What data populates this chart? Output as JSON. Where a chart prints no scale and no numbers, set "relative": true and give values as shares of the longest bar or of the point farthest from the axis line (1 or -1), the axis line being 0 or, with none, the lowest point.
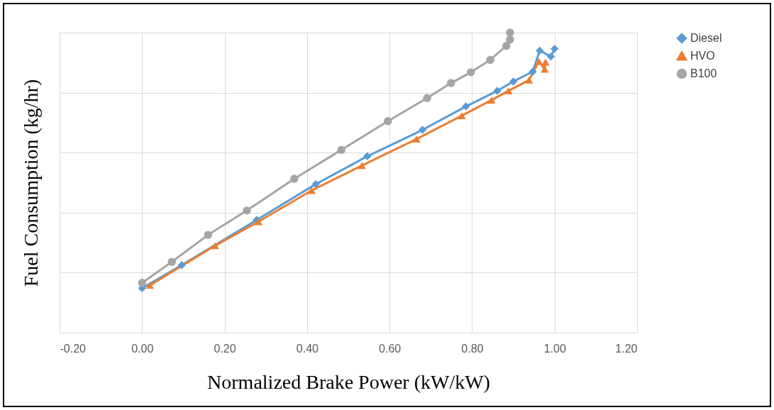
{
  "chart_data": {
    "type": "line",
    "xlabel": "Normalized Brake Power (kW/kW)",
    "ylabel": "Fuel Consumption (kg/hr)",
    "relative": true,
    "grid": true,
    "legend": "right",
    "xlim": [
      -0.2,
      1.2
    ],
    "xticks": [
      {
        "value": -0.2,
        "label": "-0.20"
      },
      {
        "value": 0,
        "label": "0.00"
      },
      {
        "value": 0.2,
        "label": "0.20"
      },
      {
        "value": 0.4,
        "label": "0.40"
      },
      {
        "value": 0.6,
        "label": "0.60"
      },
      {
        "value": 0.8,
        "label": "0.80"
      },
      {
        "value": 1,
        "label": "1.00"
      },
      {
        "value": 1.2,
        "label": "1.20"
      }
    ],
    "series": [
      {
        "name": "Diesel",
        "color": "#5b9bd5",
        "marker": "diamond",
        "x": [
          0,
          0.096,
          0.278,
          0.421,
          0.546,
          0.68,
          0.785,
          0.861,
          0.9,
          0.947,
          0.964,
          0.991,
          1.0
        ],
        "values": [
          0.148,
          0.225,
          0.376,
          0.495,
          0.588,
          0.676,
          0.754,
          0.806,
          0.837,
          0.87,
          0.94,
          0.92,
          0.946
        ]
      },
      {
        "name": "HVO",
        "color": "#ed7d31",
        "marker": "triangle",
        "x": [
          0.019,
          0.177,
          0.282,
          0.411,
          0.533,
          0.665,
          0.775,
          0.847,
          0.888,
          0.938,
          0.962,
          0.976,
          0.978
        ],
        "values": [
          0.158,
          0.29,
          0.37,
          0.474,
          0.557,
          0.645,
          0.723,
          0.775,
          0.806,
          0.842,
          0.904,
          0.878,
          0.902
        ]
      },
      {
        "name": "B100",
        "color": "#a5a5a5",
        "marker": "circle",
        "x": [
          0,
          0.072,
          0.16,
          0.254,
          0.369,
          0.483,
          0.596,
          0.691,
          0.749,
          0.797,
          0.844,
          0.883,
          0.892,
          0.892
        ],
        "values": [
          0.166,
          0.236,
          0.326,
          0.407,
          0.513,
          0.609,
          0.705,
          0.782,
          0.832,
          0.868,
          0.909,
          0.956,
          0.977,
          1.0
        ]
      }
    ]
  }
}
